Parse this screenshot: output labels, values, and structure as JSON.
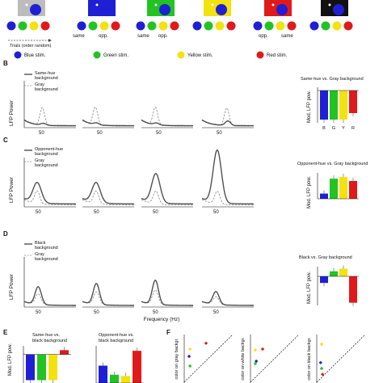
{
  "colors": {
    "blue": "#1f1fd6",
    "green": "#22c322",
    "yellow": "#f2e20f",
    "red": "#e01a1a",
    "gray": "#bcbcbc",
    "black": "#111111"
  },
  "panelA": {
    "labels": [
      "",
      "",
      "same",
      "opp.",
      "same",
      "opp.",
      "opp.",
      "same"
    ],
    "trials_label": "Trials (order random)",
    "stimulus_order": [
      "blue",
      "green",
      "yellow",
      "red"
    ]
  },
  "legend": [
    "Blue stim.",
    "Green stim.",
    "Yellow stim.",
    "Red stim."
  ],
  "panelB": {
    "letter": "B",
    "ylabel": "LFP Power",
    "legend_solid": "Same-hue background",
    "legend_dash": "Gray background",
    "tick": "50",
    "bar_title": "Same-hue vs. Gray background",
    "bar_ylabel": "Mod. LFP pow.",
    "bar_categories": [
      "B",
      "G",
      "Y",
      "R"
    ]
  },
  "panelC": {
    "letter": "C",
    "ylabel": "LFP Power",
    "legend_solid": "Opponent-hue background",
    "legend_dash": "Gray background",
    "tick": "50",
    "bar_title": "Opponent-hue vs. Gray background",
    "bar_ylabel": "Mod. LFP pow."
  },
  "panelD": {
    "letter": "D",
    "ylabel": "LFP Power",
    "legend_solid": "Black background",
    "legend_dash": "Gray background",
    "tick": "50",
    "xlabel": "Frequency (Hz)",
    "bar_title": "Black vs. Gray background",
    "bar_ylabel": "Mod. LFP pow."
  },
  "panelE": {
    "letter": "E",
    "ylabel": "Mod. LFP pow.",
    "title1": "Same-hue vs. black background",
    "title2": "Opponent-hue vs. black background"
  },
  "panelF": {
    "letter": "F",
    "ylabel1": "color on gray backgr.",
    "ylabel2": "color on white backgr.",
    "ylabel3": "color on black backgr."
  },
  "chart_data": [
    {
      "type": "bar",
      "title": "Same-hue vs. Gray background",
      "ylabel": "Mod. LFP pow.",
      "categories": [
        "B",
        "G",
        "Y",
        "R"
      ],
      "values": [
        -0.9,
        -0.9,
        -0.9,
        -0.7
      ],
      "colors": [
        "#1f1fd6",
        "#22c322",
        "#f2e20f",
        "#e01a1a"
      ],
      "ylim": [
        -1,
        0.1
      ]
    },
    {
      "type": "bar",
      "title": "Opponent-hue vs. Gray background",
      "ylabel": "Mod. LFP pow.",
      "categories": [
        "B",
        "G",
        "Y",
        "R"
      ],
      "values": [
        0.09,
        0.35,
        0.38,
        0.31
      ],
      "colors": [
        "#1f1fd6",
        "#22c322",
        "#f2e20f",
        "#e01a1a"
      ],
      "ylim": [
        0,
        0.45
      ]
    },
    {
      "type": "bar",
      "title": "Black vs. Gray background",
      "ylabel": "Mod. LFP pow.",
      "categories": [
        "B",
        "G",
        "Y",
        "R"
      ],
      "values": [
        -0.17,
        0.13,
        0.2,
        -0.68
      ],
      "colors": [
        "#1f1fd6",
        "#22c322",
        "#f2e20f",
        "#e01a1a"
      ],
      "ylim": [
        -0.75,
        0.25
      ]
    },
    {
      "type": "bar",
      "title": "Same-hue vs. black background",
      "ylabel": "Mod. LFP pow.",
      "categories": [
        "B",
        "G",
        "Y",
        "R"
      ],
      "values": [
        -0.9,
        -0.9,
        -0.9,
        0.15
      ],
      "colors": [
        "#1f1fd6",
        "#22c322",
        "#f2e20f",
        "#e01a1a"
      ],
      "ylim": [
        -1,
        0.3
      ]
    },
    {
      "type": "bar",
      "title": "Opponent-hue vs. black background",
      "ylabel": "Mod. LFP pow.",
      "categories": [
        "B",
        "G",
        "Y",
        "R"
      ],
      "values": [
        0.42,
        0.2,
        0.17,
        0.78
      ],
      "colors": [
        "#1f1fd6",
        "#22c322",
        "#f2e20f",
        "#e01a1a"
      ],
      "ylim": [
        0,
        0.9
      ]
    }
  ]
}
